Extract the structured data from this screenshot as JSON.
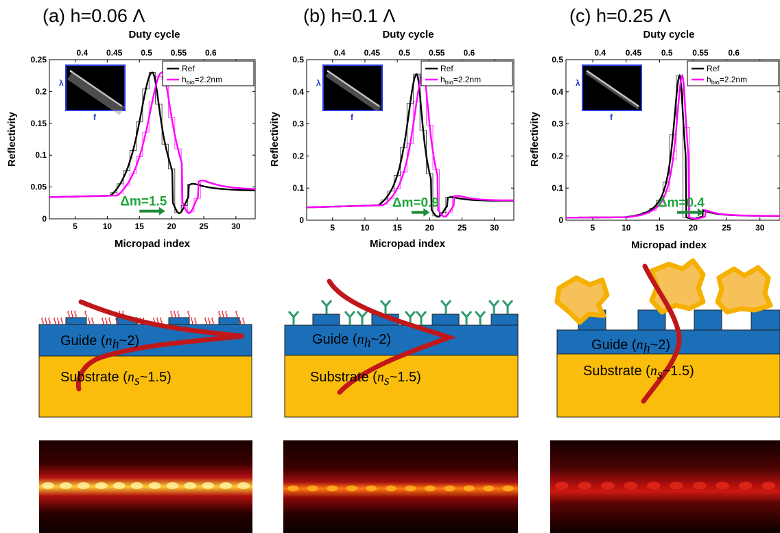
{
  "colors": {
    "ref": "#000000",
    "bio": "#ff00ff",
    "delta_arrow": "#1f8a3a",
    "guide": "#1b6fb8",
    "substrate": "#fbbd0c",
    "mode_curve": "#c0181a",
    "antibody": "#2e9a6a",
    "cell": "#f5b840"
  },
  "panels": [
    {
      "title": "(a) h=0.06 Λ",
      "guide_label": "Guide (",
      "guide_sym": "n",
      "guide_sub": "h",
      "guide_tail": "~2)",
      "substrate_label": "Substrate (",
      "substrate_sym": "n",
      "substrate_sub": "s",
      "substrate_tail": "~1.5)"
    },
    {
      "title": "(b) h=0.1 Λ",
      "guide_label": "Guide (",
      "guide_sym": "n",
      "guide_sub": "h",
      "guide_tail": "~2)",
      "substrate_label": "Substrate (",
      "substrate_sym": "n",
      "substrate_sub": "s",
      "substrate_tail": "~1.5)"
    },
    {
      "title": "(c) h=0.25 Λ",
      "guide_label": "Guide (",
      "guide_sym": "n",
      "guide_sub": "h",
      "guide_tail": "~2)",
      "substrate_label": "Substrate (",
      "substrate_sym": "n",
      "substrate_sub": "s",
      "substrate_tail": "~1.5)"
    }
  ],
  "chart_data": [
    {
      "type": "line",
      "xlabel": "Micropad index",
      "x2label": "Duty cycle",
      "ylabel": "Reflectivity",
      "xlim": [
        1,
        33
      ],
      "xticks": [
        5,
        10,
        15,
        20,
        25,
        30
      ],
      "ylim": [
        0,
        0.25
      ],
      "yticks": [
        0,
        0.05,
        0.1,
        0.15,
        0.2,
        0.25
      ],
      "ytick_labels": [
        "0",
        "0.05",
        "0.1",
        "0.15",
        "0.2",
        "0.25"
      ],
      "x2ticks": [
        0.4,
        0.45,
        0.5,
        0.55,
        0.6
      ],
      "x2tick_labels": [
        "0.4",
        "0.45",
        "0.5",
        "0.55",
        "0.6"
      ],
      "x2_at": [
        6.1,
        11.1,
        16.1,
        21.1,
        26.1
      ],
      "legend": [
        "Ref",
        "h",
        "bio",
        "=2.2nm"
      ],
      "inset": {
        "ylabel": "λ",
        "xlabel": "f"
      },
      "delta_label": "Δm=1.5",
      "delta_from": 15.0,
      "delta_to": 19.0,
      "delta_y": 0.01,
      "peak_y": 0.23,
      "ref": {
        "peak": 17.0,
        "hw_left": 2.8,
        "hw_right": 1.8,
        "dip": 21.2
      },
      "bio": {
        "peak": 18.5,
        "hw_left": 3.0,
        "hw_right": 2.1,
        "dip": 22.7
      },
      "series": [
        {
          "name": "Ref",
          "x": [
            1,
            3,
            5,
            7,
            9,
            11,
            13,
            14,
            15,
            16,
            17,
            17.5,
            18,
            18.5,
            19,
            19.5,
            20,
            21,
            22,
            23,
            25,
            27,
            29,
            31,
            33
          ],
          "y": [
            0.035,
            0.04,
            0.046,
            0.054,
            0.065,
            0.082,
            0.115,
            0.145,
            0.185,
            0.222,
            0.229,
            0.21,
            0.17,
            0.12,
            0.075,
            0.04,
            0.02,
            0.008,
            0.006,
            0.01,
            0.018,
            0.025,
            0.032,
            0.038,
            0.042
          ]
        },
        {
          "name": "h_bio=2.2nm",
          "x": [
            1,
            3,
            5,
            7,
            9,
            11,
            13,
            15,
            16,
            17,
            18,
            18.5,
            19,
            19.5,
            20,
            20.5,
            21,
            22,
            23,
            24,
            26,
            28,
            30,
            32,
            33
          ],
          "y": [
            0.033,
            0.037,
            0.042,
            0.048,
            0.057,
            0.07,
            0.09,
            0.128,
            0.158,
            0.198,
            0.226,
            0.23,
            0.21,
            0.175,
            0.13,
            0.09,
            0.055,
            0.02,
            0.007,
            0.009,
            0.017,
            0.024,
            0.031,
            0.037,
            0.041
          ]
        }
      ]
    },
    {
      "type": "line",
      "xlabel": "Micropad index",
      "x2label": "Duty cycle",
      "ylabel": "Reflectivity",
      "xlim": [
        1,
        33
      ],
      "xticks": [
        5,
        10,
        15,
        20,
        25,
        30
      ],
      "ylim": [
        0,
        0.5
      ],
      "yticks": [
        0,
        0.1,
        0.2,
        0.3,
        0.4,
        0.5
      ],
      "ytick_labels": [
        "0",
        "0.1",
        "0.2",
        "0.3",
        "0.4",
        "0.5"
      ],
      "x2ticks": [
        0.4,
        0.45,
        0.5,
        0.55,
        0.6
      ],
      "x2tick_labels": [
        "0.4",
        "0.45",
        "0.5",
        "0.55",
        "0.6"
      ],
      "x2_at": [
        6.1,
        11.1,
        16.1,
        21.1,
        26.1
      ],
      "legend": [
        "Ref",
        "h",
        "bio",
        "=2.2nm"
      ],
      "inset": {
        "ylabel": "λ",
        "xlabel": "f"
      },
      "delta_label": "Δm=0.9",
      "delta_from": 17.2,
      "delta_to": 20.0,
      "delta_y": 0.02,
      "peak_y": 0.455,
      "ref": {
        "peak": 18.0,
        "hw_left": 2.0,
        "hw_right": 1.2,
        "dip": 21.3
      },
      "bio": {
        "peak": 19.0,
        "hw_left": 2.1,
        "hw_right": 1.3,
        "dip": 22.3
      },
      "series": [
        {
          "name": "Ref",
          "x": [
            1,
            3,
            5,
            7,
            9,
            11,
            13,
            14,
            15,
            16,
            17,
            17.5,
            18,
            18.5,
            19,
            19.5,
            20,
            20.5,
            21,
            22,
            24,
            26,
            28,
            30,
            33
          ],
          "y": [
            0.04,
            0.043,
            0.048,
            0.055,
            0.066,
            0.083,
            0.11,
            0.135,
            0.175,
            0.24,
            0.34,
            0.4,
            0.455,
            0.42,
            0.31,
            0.19,
            0.09,
            0.04,
            0.015,
            0.01,
            0.02,
            0.03,
            0.038,
            0.046,
            0.057
          ]
        },
        {
          "name": "h_bio=2.2nm",
          "x": [
            1,
            3,
            5,
            7,
            9,
            11,
            13,
            15,
            16,
            17,
            18,
            18.5,
            19,
            19.5,
            20,
            20.5,
            21,
            21.5,
            22,
            23,
            25,
            27,
            29,
            31,
            33
          ],
          "y": [
            0.038,
            0.041,
            0.046,
            0.052,
            0.062,
            0.077,
            0.1,
            0.15,
            0.2,
            0.28,
            0.39,
            0.43,
            0.455,
            0.41,
            0.3,
            0.18,
            0.085,
            0.035,
            0.012,
            0.01,
            0.02,
            0.03,
            0.039,
            0.048,
            0.058
          ]
        }
      ]
    },
    {
      "type": "line",
      "xlabel": "Micropad index",
      "x2label": "Duty cycle",
      "ylabel": "Reflectivity",
      "xlim": [
        1,
        33
      ],
      "xticks": [
        5,
        10,
        15,
        20,
        25,
        30
      ],
      "ylim": [
        0,
        0.5
      ],
      "yticks": [
        0,
        0.1,
        0.2,
        0.3,
        0.4,
        0.5
      ],
      "ytick_labels": [
        "0",
        "0.1",
        "0.2",
        "0.3",
        "0.4",
        "0.5"
      ],
      "x2ticks": [
        0.4,
        0.45,
        0.5,
        0.55,
        0.6
      ],
      "x2tick_labels": [
        "0.4",
        "0.45",
        "0.5",
        "0.55",
        "0.6"
      ],
      "x2_at": [
        6.1,
        11.1,
        16.1,
        21.1,
        26.1
      ],
      "legend": [
        "Ref",
        "h",
        "bio",
        "=2.2nm"
      ],
      "inset": {
        "ylabel": "λ",
        "xlabel": "f"
      },
      "delta_label": "Δm=0.4",
      "delta_from": 17.6,
      "delta_to": 21.6,
      "delta_y": 0.02,
      "peak_y": 0.45,
      "ref": {
        "peak": 18.0,
        "hw_left": 1.2,
        "hw_right": 0.8,
        "dip": 20.0
      },
      "bio": {
        "peak": 18.4,
        "hw_left": 1.2,
        "hw_right": 0.8,
        "dip": 20.4
      },
      "series": [
        {
          "name": "Ref",
          "x": [
            1,
            5,
            9,
            12,
            14,
            15,
            16,
            17,
            17.5,
            18,
            18.5,
            19,
            19.5,
            20,
            21,
            23,
            26,
            30,
            33
          ],
          "y": [
            0.008,
            0.01,
            0.014,
            0.022,
            0.04,
            0.065,
            0.12,
            0.25,
            0.35,
            0.43,
            0.36,
            0.2,
            0.09,
            0.03,
            0.008,
            0.007,
            0.008,
            0.01,
            0.012
          ]
        },
        {
          "name": "h_bio=2.2nm",
          "x": [
            1,
            5,
            9,
            12,
            14,
            15,
            16,
            17,
            17.5,
            18,
            18.5,
            19,
            19.5,
            20,
            21,
            23,
            26,
            30,
            33
          ],
          "y": [
            0.008,
            0.01,
            0.014,
            0.02,
            0.035,
            0.055,
            0.1,
            0.21,
            0.31,
            0.42,
            0.45,
            0.33,
            0.16,
            0.06,
            0.015,
            0.007,
            0.008,
            0.01,
            0.012
          ]
        }
      ]
    }
  ]
}
